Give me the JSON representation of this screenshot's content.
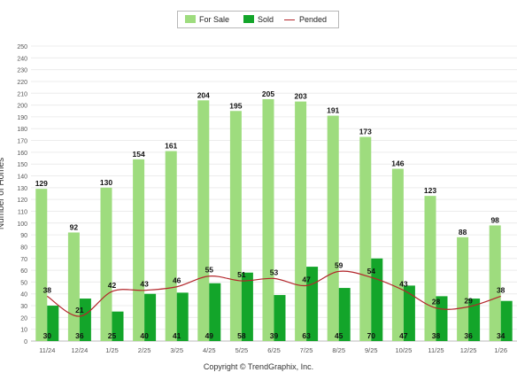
{
  "legend": {
    "for_sale": "For Sale",
    "sold": "Sold",
    "pended": "Pended"
  },
  "footer": "Copyright © TrendGraphix, Inc.",
  "colors": {
    "for_sale": "#9edc7e",
    "sold": "#13a52a",
    "pended": "#b3262b",
    "grid": "#ececec"
  },
  "chart_data": {
    "type": "bar",
    "ylabel": "Number of Homes",
    "ylim": [
      0,
      250
    ],
    "ytick_step": 10,
    "grid": true,
    "legend_position": "top-center",
    "categories": [
      "11/24",
      "12/24",
      "1/25",
      "2/25",
      "3/25",
      "4/25",
      "5/25",
      "6/25",
      "7/25",
      "8/25",
      "9/25",
      "10/25",
      "11/25",
      "12/25",
      "1/26"
    ],
    "series": [
      {
        "name": "For Sale",
        "kind": "bar",
        "values": [
          129,
          92,
          130,
          154,
          161,
          204,
          195,
          205,
          203,
          191,
          173,
          146,
          123,
          88,
          98
        ]
      },
      {
        "name": "Sold",
        "kind": "bar",
        "values": [
          30,
          36,
          25,
          40,
          41,
          49,
          58,
          39,
          63,
          45,
          70,
          47,
          38,
          36,
          34
        ]
      },
      {
        "name": "Pended",
        "kind": "line",
        "values": [
          38,
          21,
          42,
          43,
          46,
          55,
          51,
          53,
          47,
          59,
          54,
          43,
          28,
          29,
          38
        ]
      }
    ]
  }
}
